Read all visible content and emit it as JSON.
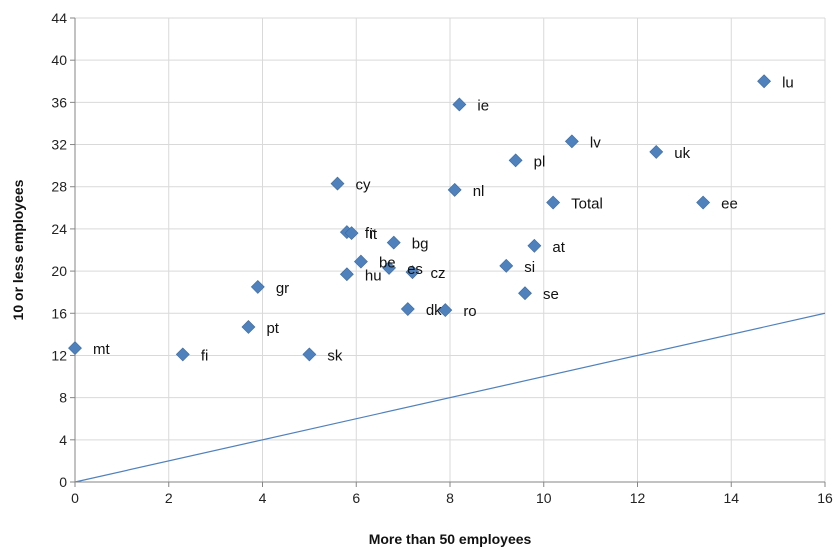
{
  "chart_data": {
    "type": "scatter",
    "xlabel": "More than 50 employees",
    "ylabel": "10 or less employees",
    "xlim": [
      0,
      16
    ],
    "ylim": [
      0,
      44
    ],
    "xticks": [
      0,
      2,
      4,
      6,
      8,
      10,
      12,
      14,
      16
    ],
    "yticks": [
      0,
      4,
      8,
      12,
      16,
      20,
      24,
      28,
      32,
      36,
      40,
      44
    ],
    "grid": "both",
    "legend": "none",
    "marker_color": "#4f81bd",
    "reference_line": {
      "from": [
        0,
        0
      ],
      "to": [
        16,
        16
      ],
      "color": "#4f81bd"
    },
    "points": [
      {
        "label": "mt",
        "x": 0.0,
        "y": 12.7
      },
      {
        "label": "fi",
        "x": 2.3,
        "y": 12.1
      },
      {
        "label": "pt",
        "x": 3.7,
        "y": 14.7
      },
      {
        "label": "gr",
        "x": 3.9,
        "y": 18.5
      },
      {
        "label": "sk",
        "x": 5.0,
        "y": 12.1
      },
      {
        "label": "cy",
        "x": 5.6,
        "y": 28.3
      },
      {
        "label": "hu",
        "x": 5.8,
        "y": 19.7
      },
      {
        "label": "fr",
        "x": 5.8,
        "y": 23.7
      },
      {
        "label": "it",
        "x": 5.9,
        "y": 23.6
      },
      {
        "label": "be",
        "x": 6.1,
        "y": 20.9
      },
      {
        "label": "es",
        "x": 6.7,
        "y": 20.3
      },
      {
        "label": "bg",
        "x": 6.8,
        "y": 22.7
      },
      {
        "label": "dk",
        "x": 7.1,
        "y": 16.4
      },
      {
        "label": "cz",
        "x": 7.2,
        "y": 19.9
      },
      {
        "label": "ro",
        "x": 7.9,
        "y": 16.3
      },
      {
        "label": "nl",
        "x": 8.1,
        "y": 27.7
      },
      {
        "label": "ie",
        "x": 8.2,
        "y": 35.8
      },
      {
        "label": "si",
        "x": 9.2,
        "y": 20.5
      },
      {
        "label": "pl",
        "x": 9.4,
        "y": 30.5
      },
      {
        "label": "se",
        "x": 9.6,
        "y": 17.9
      },
      {
        "label": "at",
        "x": 9.8,
        "y": 22.4
      },
      {
        "label": "Total",
        "x": 10.2,
        "y": 26.5
      },
      {
        "label": "lv",
        "x": 10.6,
        "y": 32.3
      },
      {
        "label": "uk",
        "x": 12.4,
        "y": 31.3
      },
      {
        "label": "ee",
        "x": 13.4,
        "y": 26.5
      },
      {
        "label": "lu",
        "x": 14.7,
        "y": 38.0
      }
    ]
  }
}
